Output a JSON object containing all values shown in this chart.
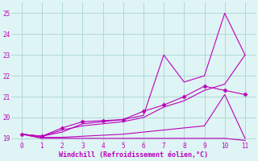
{
  "background_color": "#dff4f4",
  "grid_color": "#b0d8d8",
  "line_color": "#bb00bb",
  "xlabel": "Windchill (Refroidissement éolien,°C)",
  "xlim": [
    -0.5,
    11.5
  ],
  "ylim": [
    18.85,
    25.5
  ],
  "yticks": [
    19,
    20,
    21,
    22,
    23,
    24,
    25
  ],
  "xticks": [
    0,
    1,
    2,
    3,
    4,
    5,
    6,
    7,
    8,
    9,
    10,
    11
  ],
  "line1": {
    "x": [
      0,
      1,
      2,
      3,
      4,
      5,
      6,
      7,
      8,
      9,
      10,
      11
    ],
    "y": [
      19.2,
      19.0,
      19.0,
      19.0,
      19.0,
      19.0,
      19.0,
      19.0,
      19.0,
      19.0,
      19.0,
      18.9
    ]
  },
  "line2": {
    "x": [
      0,
      1,
      2,
      3,
      4,
      5,
      6,
      7,
      8,
      9,
      10,
      11
    ],
    "y": [
      19.2,
      19.1,
      19.4,
      19.6,
      19.7,
      19.8,
      20.0,
      20.5,
      20.8,
      21.3,
      21.6,
      23.0
    ]
  },
  "line3_spiky": {
    "x": [
      0,
      1,
      2,
      3,
      4,
      5,
      6,
      7,
      8,
      9,
      10,
      11
    ],
    "y": [
      19.2,
      19.1,
      19.3,
      19.7,
      19.8,
      19.9,
      20.1,
      23.0,
      21.7,
      22.0,
      25.0,
      23.0
    ]
  },
  "line4_markers": {
    "x": [
      0,
      1,
      2,
      3,
      4,
      5,
      6,
      7,
      8,
      9,
      10,
      11
    ],
    "y": [
      19.2,
      19.1,
      19.5,
      19.8,
      19.85,
      19.9,
      20.3,
      20.6,
      21.0,
      21.5,
      21.3,
      21.1
    ]
  },
  "line5_plateau": {
    "x": [
      0,
      1,
      2,
      3,
      4,
      5,
      6,
      7,
      8,
      9,
      10,
      11
    ],
    "y": [
      19.2,
      19.05,
      19.05,
      19.1,
      19.15,
      19.2,
      19.3,
      19.4,
      19.5,
      19.6,
      21.1,
      19.0
    ]
  }
}
